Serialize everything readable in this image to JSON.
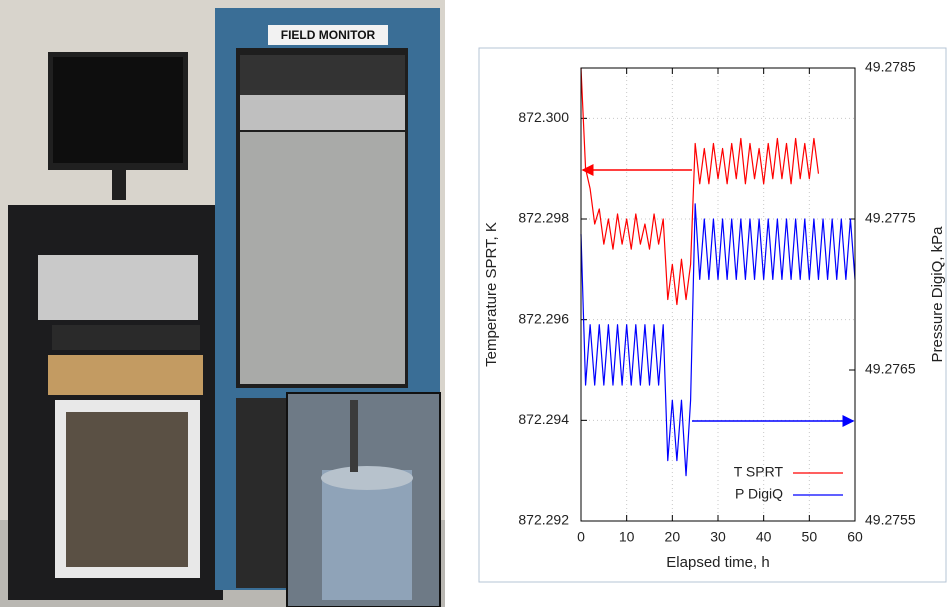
{
  "photo": {
    "label": "FIELD MONITOR"
  },
  "chart_data": {
    "type": "line",
    "xlabel": "Elapsed time, h",
    "ylabel": "Temperature SPRT, K",
    "y2label": "Pressure DigiQ, kPa",
    "xlim": [
      0,
      60
    ],
    "xticks": [
      0,
      10,
      20,
      30,
      40,
      50,
      60
    ],
    "ylim": [
      872.292,
      872.301
    ],
    "yticks": [
      872.292,
      872.294,
      872.296,
      872.298,
      {
        "value": 872.3,
        "label": "872.300"
      }
    ],
    "y2lim": [
      49.2755,
      49.2785
    ],
    "y2ticks": [
      49.2755,
      49.2765,
      49.2775,
      49.2785
    ],
    "grid": true,
    "legend": "lower right",
    "series": [
      {
        "name": "T SPRT",
        "color": "#ff0000",
        "axis": "y",
        "x": [
          0,
          1,
          2,
          3,
          4,
          5,
          6,
          7,
          8,
          9,
          10,
          11,
          12,
          13,
          14,
          15,
          16,
          17,
          18,
          19,
          20,
          21,
          22,
          23,
          24,
          25,
          26,
          27,
          28,
          29,
          30,
          31,
          32,
          33,
          34,
          35,
          36,
          37,
          38,
          39,
          40,
          41,
          42,
          43,
          44,
          45,
          46,
          47,
          48,
          49,
          50,
          51,
          52
        ],
        "values": [
          872.301,
          872.299,
          872.2986,
          872.2979,
          872.2982,
          872.2975,
          872.298,
          872.2974,
          872.2981,
          872.2975,
          872.298,
          872.2974,
          872.2981,
          872.2975,
          872.2979,
          872.2974,
          872.2981,
          872.2975,
          872.298,
          872.2964,
          872.2971,
          872.2963,
          872.2972,
          872.2964,
          872.2971,
          872.2995,
          872.2987,
          872.2994,
          872.2987,
          872.2995,
          872.2988,
          872.2994,
          872.2987,
          872.2995,
          872.2988,
          872.2996,
          872.2987,
          872.2995,
          872.2988,
          872.2994,
          872.2987,
          872.2995,
          872.2988,
          872.2996,
          872.2988,
          872.2995,
          872.2987,
          872.2996,
          872.2988,
          872.2995,
          872.2988,
          872.2996,
          872.2989
        ]
      },
      {
        "name": "P DigiQ",
        "color": "#0000ff",
        "axis": "y2",
        "x": [
          0,
          1,
          2,
          3,
          4,
          5,
          6,
          7,
          8,
          9,
          10,
          11,
          12,
          13,
          14,
          15,
          16,
          17,
          18,
          19,
          20,
          21,
          22,
          23,
          24,
          25,
          26,
          27,
          28,
          29,
          30,
          31,
          32,
          33,
          34,
          35,
          36,
          37,
          38,
          39,
          40,
          41,
          42,
          43,
          44,
          45,
          46,
          47,
          48,
          49,
          50,
          51,
          52,
          53,
          54,
          55,
          56,
          57,
          58,
          59,
          60
        ],
        "values": [
          49.2774,
          49.2764,
          49.2768,
          49.2764,
          49.2768,
          49.2764,
          49.2768,
          49.2764,
          49.2768,
          49.2764,
          49.2768,
          49.2764,
          49.2768,
          49.2764,
          49.2768,
          49.2764,
          49.2768,
          49.2764,
          49.2768,
          49.2759,
          49.2763,
          49.2759,
          49.2763,
          49.2758,
          49.2763,
          49.2776,
          49.2771,
          49.2775,
          49.2771,
          49.2775,
          49.2771,
          49.2775,
          49.2771,
          49.2775,
          49.2771,
          49.2775,
          49.2771,
          49.2775,
          49.2771,
          49.2775,
          49.2771,
          49.2775,
          49.2771,
          49.2775,
          49.2771,
          49.2775,
          49.2771,
          49.2775,
          49.2771,
          49.2775,
          49.2771,
          49.2775,
          49.2771,
          49.2775,
          49.2771,
          49.2775,
          49.2771,
          49.2775,
          49.2771,
          49.2775,
          49.2771
        ]
      }
    ]
  }
}
